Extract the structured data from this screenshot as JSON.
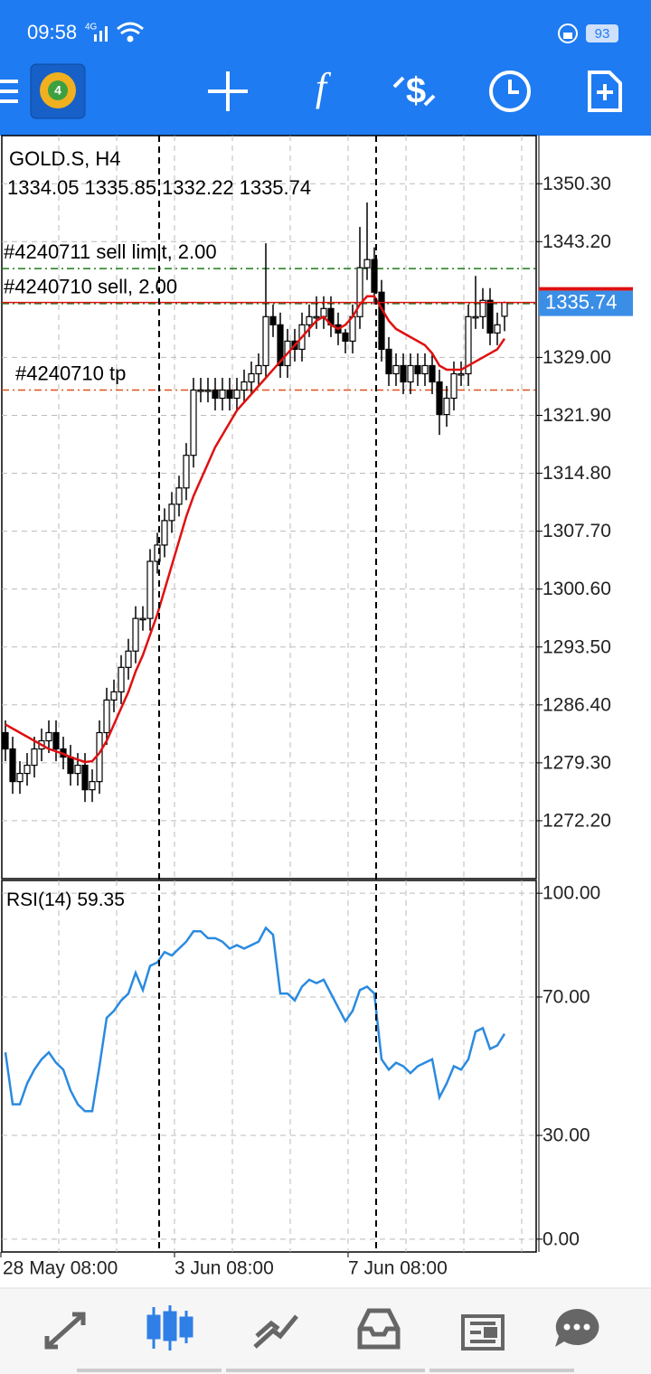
{
  "status_bar": {
    "time": "09:58",
    "network": "4G",
    "battery": "93"
  },
  "chart_data": {
    "type": "candlestick",
    "title": "GOLD.S, H4",
    "x": [
      "28 May 08:00",
      null,
      null,
      null,
      null,
      null,
      null,
      null,
      null,
      null,
      null,
      null,
      null,
      null,
      null,
      null,
      null,
      null,
      null,
      null,
      null,
      null,
      null,
      null,
      "3 Jun 08:00",
      null,
      null,
      null,
      null,
      null,
      null,
      null,
      null,
      null,
      null,
      null,
      null,
      null,
      null,
      null,
      null,
      null,
      null,
      null,
      null,
      null,
      null,
      null,
      "7 Jun 08:00",
      null,
      null,
      null,
      null,
      null,
      null,
      null,
      null,
      null,
      null,
      null,
      null,
      null,
      null,
      null,
      null,
      null,
      null,
      null,
      null,
      null
    ],
    "open": [
      1283,
      1281,
      1277,
      1278,
      1279,
      1281,
      1282,
      1283,
      1281,
      1280,
      1278,
      1279,
      1276,
      1277,
      1283,
      1287,
      1288,
      1291,
      1293,
      1297,
      1297,
      1304,
      1306,
      1309,
      1311,
      1313,
      1317,
      1325,
      1325,
      1325,
      1324,
      1325,
      1324,
      1325,
      1326,
      1327,
      1328,
      1334,
      1333,
      1328,
      1331,
      1330,
      1333,
      1334,
      1334,
      1335,
      1333,
      1332,
      1331,
      1334,
      1340,
      1341,
      1337,
      1330,
      1327,
      1328,
      1326,
      1328,
      1327,
      1328,
      1326,
      1322,
      1324,
      1327,
      1327,
      1334,
      1334,
      1336,
      1332,
      1334.05
    ],
    "high": [
      1284.5,
      1282.5,
      1279.5,
      1280.5,
      1282.5,
      1283.5,
      1284.5,
      1284.5,
      1282.5,
      1281.5,
      1280.5,
      1280.5,
      1278.5,
      1284.5,
      1288.5,
      1289.5,
      1292.5,
      1294.5,
      1298.5,
      1298.5,
      1305.5,
      1307.5,
      1310.5,
      1312.5,
      1314.5,
      1318.5,
      1326.5,
      1326.5,
      1326.5,
      1326.5,
      1326.5,
      1326.5,
      1326.5,
      1327.5,
      1328.5,
      1329.5,
      1343,
      1335.5,
      1334.5,
      1332.5,
      1332.5,
      1334.5,
      1335.5,
      1336.5,
      1336.5,
      1336.5,
      1334.5,
      1332.5,
      1335.5,
      1345,
      1348,
      1342.5,
      1338.5,
      1331.5,
      1329.5,
      1329.5,
      1329.5,
      1329.5,
      1329.5,
      1329.5,
      1327.5,
      1325.5,
      1328.5,
      1328.5,
      1335.5,
      1339,
      1337.5,
      1337.5,
      1334.5,
      1335.85
    ],
    "low": [
      1279.5,
      1275.5,
      1275.5,
      1276.5,
      1277.5,
      1279.5,
      1280.5,
      1279.5,
      1278.5,
      1276.5,
      1276.5,
      1274.5,
      1274.5,
      1275.5,
      1281.5,
      1285.5,
      1286.5,
      1289.5,
      1291.5,
      1295.5,
      1295.5,
      1302.5,
      1304.5,
      1307.5,
      1309.5,
      1311.5,
      1315.5,
      1323.5,
      1323.5,
      1322.5,
      1322.5,
      1322.5,
      1322.5,
      1323.5,
      1324.5,
      1325.5,
      1326.5,
      1331.5,
      1326.5,
      1326.5,
      1328.5,
      1328.5,
      1331.5,
      1332.5,
      1332.5,
      1331.5,
      1330.5,
      1329.5,
      1329.5,
      1332.5,
      1338.5,
      1335.5,
      1328.5,
      1325.5,
      1325.5,
      1324.5,
      1324.5,
      1325.5,
      1325.5,
      1324.5,
      1319.5,
      1320.5,
      1322.5,
      1325.5,
      1325.5,
      1332.5,
      1332.5,
      1330.5,
      1330.5,
      1332.22
    ],
    "close": [
      1281,
      1277,
      1278,
      1279,
      1281,
      1282,
      1283,
      1281,
      1280,
      1278,
      1279,
      1276,
      1277,
      1283,
      1287,
      1288,
      1291,
      1293,
      1297,
      1297,
      1304,
      1306,
      1309,
      1311,
      1313,
      1317,
      1325,
      1325,
      1325,
      1324,
      1325,
      1324,
      1325,
      1326,
      1327,
      1328,
      1334,
      1333,
      1328,
      1331,
      1330,
      1333,
      1334,
      1334,
      1335,
      1333,
      1332,
      1331,
      1334,
      1340,
      1341,
      1337,
      1330,
      1327,
      1328,
      1326,
      1328,
      1327,
      1328,
      1326,
      1322,
      1324,
      1327,
      1327,
      1334,
      1334,
      1336,
      1332,
      1333,
      1335.74
    ],
    "color": "#000000",
    "ma": {
      "color": "#e01010",
      "values": [
        1284,
        1283.5,
        1283,
        1282.5,
        1282,
        1281.5,
        1281,
        1280.7,
        1280.4,
        1280,
        1279.7,
        1279.4,
        1279.5,
        1280.5,
        1282,
        1284,
        1286,
        1288,
        1290.5,
        1292.5,
        1295,
        1297.5,
        1300.5,
        1303.5,
        1306.5,
        1309.5,
        1312,
        1314,
        1316,
        1318,
        1319.5,
        1321,
        1322.5,
        1323.5,
        1324.5,
        1325.5,
        1326.5,
        1327.5,
        1328.5,
        1329.5,
        1330.5,
        1331.5,
        1332.5,
        1333.5,
        1334,
        1333,
        1332.5,
        1333,
        1334,
        1335.5,
        1336.5,
        1336.5,
        1335,
        1333.5,
        1332.5,
        1332,
        1331.5,
        1331,
        1330.5,
        1329.5,
        1328,
        1327.5,
        1327.5,
        1327.5,
        1328,
        1328.5,
        1329,
        1329.5,
        1330,
        1331.3
      ]
    },
    "ylim": [
      1265.1,
      1356.2
    ],
    "yticks": [
      {
        "value": 1350.3,
        "label": "1350.30"
      },
      {
        "value": 1343.2,
        "label": "1343.20"
      },
      {
        "value": 1329,
        "label": "1329.00"
      },
      {
        "value": 1321.9,
        "label": "1321.90"
      },
      {
        "value": 1314.8,
        "label": "1314.80"
      },
      {
        "value": 1307.7,
        "label": "1307.70"
      },
      {
        "value": 1300.6,
        "label": "1300.60"
      },
      {
        "value": 1293.5,
        "label": "1293.50"
      },
      {
        "value": 1286.4,
        "label": "1286.40"
      },
      {
        "value": 1279.3,
        "label": "1279.30"
      },
      {
        "value": 1272.2,
        "label": "1272.20"
      }
    ],
    "grid": true,
    "bid_color": "#e01010",
    "orders": [
      {
        "label": "#4240711 sell limit, 2.00",
        "price": 1339.9,
        "color": "#1a7a1a"
      },
      {
        "label": "#4240710 sell, 2.00",
        "price": 1335.6,
        "color": "#1a7a1a"
      },
      {
        "label": "#4240710 tp",
        "price": 1325,
        "color": "#e0501a"
      }
    ],
    "rsi": {
      "name": "RSI(14)",
      "color": "#2a8ae0",
      "values": [
        54,
        39,
        39,
        45,
        49,
        52,
        54,
        51,
        49,
        43,
        39,
        37,
        37,
        50,
        64,
        66,
        69,
        71,
        77,
        72,
        79,
        80,
        83,
        82,
        84,
        86,
        89,
        89,
        87,
        87,
        86,
        84,
        85,
        84,
        85,
        86,
        90,
        88,
        71,
        71,
        69,
        73,
        75,
        74,
        75,
        71,
        67,
        63,
        66,
        72,
        73,
        71,
        52,
        49,
        51,
        50,
        48,
        50,
        51,
        52,
        41,
        45,
        50,
        49,
        52,
        60,
        61,
        55,
        56,
        59.35
      ],
      "ylim": [
        -3.7,
        103.7
      ],
      "yticks": [
        {
          "value": 100,
          "label": "100.00"
        },
        {
          "value": 70,
          "label": "70.00"
        },
        {
          "value": 30,
          "label": "30.00"
        },
        {
          "value": 0,
          "label": "0.00"
        }
      ]
    }
  }
}
